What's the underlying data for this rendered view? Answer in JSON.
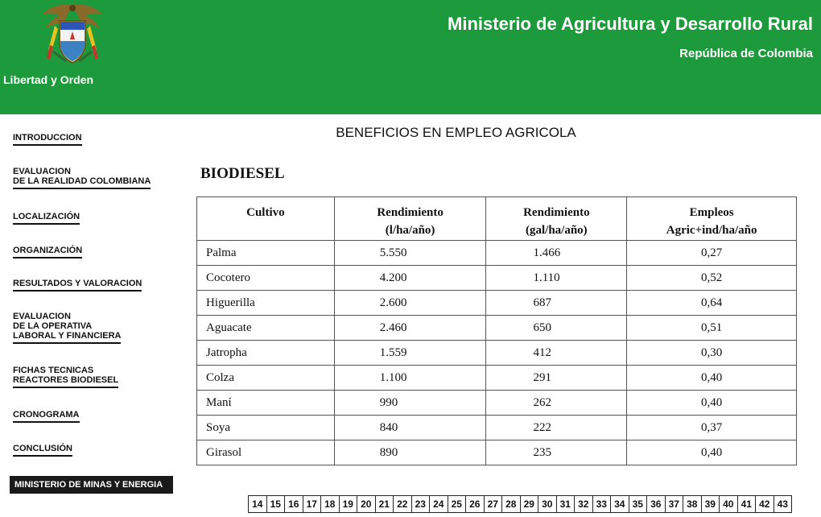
{
  "header": {
    "motto": "Libertad y Orden",
    "ministry": "Ministerio de Agricultura y Desarrollo Rural",
    "republic": "República de Colombia",
    "logo_icon": "colombia-coat-of-arms-icon"
  },
  "sidebar": {
    "items": [
      {
        "lines": [
          "INTRODUCCION"
        ]
      },
      {
        "lines": [
          "EVALUACION",
          "DE LA REALIDAD COLOMBIANA"
        ]
      },
      {
        "lines": [
          "LOCALIZACIÓN"
        ]
      },
      {
        "lines": [
          "ORGANIZACIÓN"
        ]
      },
      {
        "lines": [
          "RESULTADOS Y VALORACION"
        ]
      },
      {
        "lines": [
          "EVALUACION",
          "DE LA OPERATIVA",
          "LABORAL Y FINANCIERA"
        ]
      },
      {
        "lines": [
          "FICHAS TECNICAS",
          "REACTORES BIODIESEL"
        ]
      },
      {
        "lines": [
          "CRONOGRAMA"
        ]
      },
      {
        "lines": [
          "CONCLUSIÓN"
        ]
      }
    ],
    "button": "MINISTERIO DE MINAS Y ENERGIA"
  },
  "main": {
    "title": "BENEFICIOS EN EMPLEO AGRICOLA",
    "section": "BIODIESEL",
    "table": {
      "headers": [
        [
          "Cultivo"
        ],
        [
          "Rendimiento",
          "(l/ha/año)"
        ],
        [
          "Rendimiento",
          "(gal/ha/año)"
        ],
        [
          "Empleos",
          "Agric+ind/ha/año"
        ]
      ],
      "rows": [
        [
          "Palma",
          "5.550",
          "1.466",
          "0,27"
        ],
        [
          "Cocotero",
          "4.200",
          "1.110",
          "0,52"
        ],
        [
          "Higuerilla",
          "2.600",
          "687",
          "0,64"
        ],
        [
          "Aguacate",
          "2.460",
          "650",
          "0,51"
        ],
        [
          "Jatropha",
          "1.559",
          "412",
          "0,30"
        ],
        [
          "Colza",
          "1.100",
          "291",
          "0,40"
        ],
        [
          "Maní",
          "990",
          "262",
          "0,40"
        ],
        [
          "Soya",
          "840",
          "222",
          "0,37"
        ],
        [
          "Girasol",
          "890",
          "235",
          "0,40"
        ]
      ]
    }
  },
  "pager": {
    "pages": [
      "14",
      "15",
      "16",
      "17",
      "18",
      "19",
      "20",
      "21",
      "22",
      "23",
      "24",
      "25",
      "26",
      "27",
      "28",
      "29",
      "30",
      "31",
      "32",
      "33",
      "34",
      "35",
      "36",
      "37",
      "38",
      "39",
      "40",
      "41",
      "42",
      "43"
    ]
  },
  "colors": {
    "header_green": "#1d9a3b",
    "text": "#111111",
    "button_bg": "#1a1a1a"
  }
}
